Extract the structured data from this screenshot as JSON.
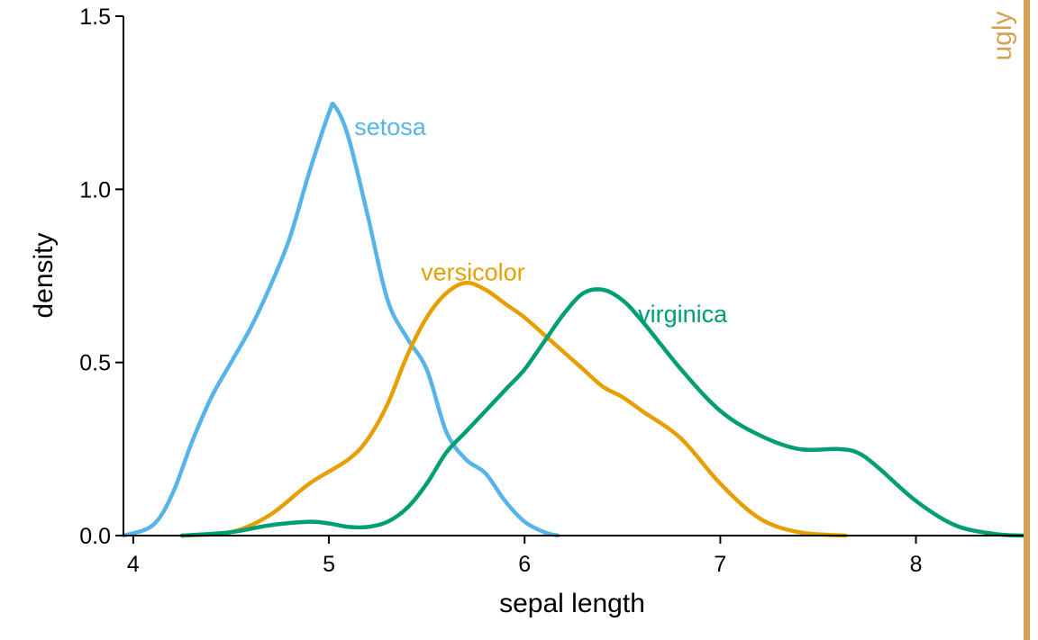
{
  "chart_data": {
    "type": "line",
    "title": "",
    "xlabel": "sepal length",
    "ylabel": "density",
    "xlim": [
      3.95,
      8.55
    ],
    "ylim": [
      0,
      1.5
    ],
    "x_ticks": [
      4,
      5,
      6,
      7,
      8
    ],
    "x_tick_labels": [
      "4",
      "5",
      "6",
      "7",
      "8"
    ],
    "y_ticks": [
      0,
      0.5,
      1.0,
      1.5
    ],
    "y_tick_labels": [
      "0.0",
      "0.5",
      "1.0",
      "1.5"
    ],
    "grid": false,
    "legend": "direct labels on curves",
    "strip_label": "ugly",
    "strip_color": "#D5A154",
    "series": [
      {
        "name": "setosa",
        "color": "#56B4E9",
        "x": [
          3.95,
          4.1,
          4.2,
          4.3,
          4.4,
          4.5,
          4.6,
          4.7,
          4.8,
          4.9,
          5.0,
          5.03,
          5.1,
          5.2,
          5.3,
          5.4,
          5.5,
          5.6,
          5.7,
          5.8,
          5.9,
          6.0,
          6.1,
          6.17
        ],
        "y": [
          0.0,
          0.03,
          0.12,
          0.27,
          0.4,
          0.5,
          0.6,
          0.72,
          0.86,
          1.05,
          1.22,
          1.24,
          1.15,
          0.92,
          0.68,
          0.57,
          0.48,
          0.3,
          0.22,
          0.18,
          0.1,
          0.04,
          0.01,
          0.0
        ],
        "label_at": [
          5.13,
          1.18
        ]
      },
      {
        "name": "versicolor",
        "color": "#E69F00",
        "x": [
          4.25,
          4.5,
          4.7,
          4.9,
          5.1,
          5.2,
          5.3,
          5.4,
          5.5,
          5.6,
          5.7,
          5.8,
          5.9,
          6.0,
          6.1,
          6.2,
          6.3,
          6.4,
          6.5,
          6.6,
          6.8,
          7.0,
          7.2,
          7.4,
          7.64
        ],
        "y": [
          0.0,
          0.01,
          0.06,
          0.15,
          0.22,
          0.28,
          0.38,
          0.52,
          0.63,
          0.7,
          0.73,
          0.71,
          0.67,
          0.63,
          0.58,
          0.53,
          0.48,
          0.43,
          0.4,
          0.36,
          0.28,
          0.15,
          0.05,
          0.01,
          0.0
        ],
        "label_at": [
          5.47,
          0.76
        ]
      },
      {
        "name": "virginica",
        "color": "#009E73",
        "x": [
          4.25,
          4.5,
          4.7,
          4.9,
          5.0,
          5.1,
          5.2,
          5.3,
          5.4,
          5.5,
          5.6,
          5.7,
          5.8,
          5.9,
          6.0,
          6.1,
          6.2,
          6.3,
          6.4,
          6.5,
          6.6,
          6.8,
          7.0,
          7.2,
          7.4,
          7.6,
          7.7,
          7.8,
          8.0,
          8.2,
          8.4,
          8.55
        ],
        "y": [
          0.0,
          0.01,
          0.03,
          0.04,
          0.035,
          0.025,
          0.025,
          0.04,
          0.08,
          0.15,
          0.24,
          0.3,
          0.36,
          0.42,
          0.48,
          0.56,
          0.64,
          0.7,
          0.71,
          0.68,
          0.62,
          0.48,
          0.36,
          0.29,
          0.25,
          0.25,
          0.24,
          0.2,
          0.1,
          0.03,
          0.005,
          0.0
        ],
        "label_at": [
          6.58,
          0.64
        ]
      }
    ]
  }
}
